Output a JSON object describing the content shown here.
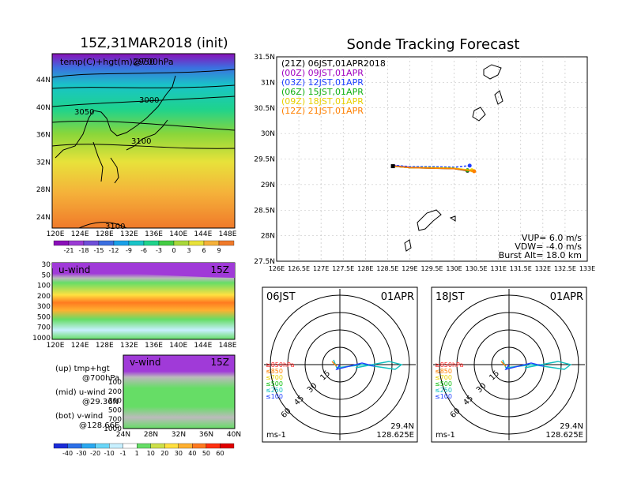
{
  "left": {
    "title": "15Z,31MAR2018 (init)",
    "map_label": "temp(C)+hgt(m)@700hPa",
    "map_label_overlap": "2950",
    "lat_ticks": [
      "44N",
      "40N",
      "36N",
      "32N",
      "28N",
      "24N"
    ],
    "lon_ticks": [
      "120E",
      "124E",
      "128E",
      "132E",
      "136E",
      "140E",
      "144E",
      "148E"
    ],
    "contour_labels": [
      "3000",
      "3050",
      "3100",
      "3100"
    ],
    "temp_scale": [
      "-21",
      "-18",
      "-15",
      "-12",
      "-9",
      "-6",
      "-3",
      "0",
      "3",
      "6",
      "9"
    ],
    "temp_colors": [
      "#8a0fb8",
      "#9b3bd4",
      "#6f4fd8",
      "#3c6fe0",
      "#1aa0e8",
      "#19c4c8",
      "#1fd38c",
      "#44cc44",
      "#a8d83a",
      "#e8e23a",
      "#f5b13a",
      "#f07a2a"
    ],
    "u_wind": {
      "label": "u-wind",
      "time": "15Z",
      "p_ticks": [
        "30",
        "50",
        "100",
        "200",
        "300",
        "500",
        "700",
        "1000"
      ]
    },
    "v_wind": {
      "label": "v-wind",
      "time": "15Z",
      "p_ticks": [
        "100",
        "200",
        "300",
        "500",
        "700",
        "1000"
      ],
      "lat_ticks": [
        "24N",
        "28N",
        "32N",
        "36N",
        "40N"
      ]
    },
    "notes": [
      {
        "a": "(up)  tmp+hgt",
        "b": "@700hPa"
      },
      {
        "a": "(mid)  u-wind",
        "b": "@29.36N"
      },
      {
        "a": "(bot)  v-wind",
        "b": "@128.66E"
      }
    ],
    "wind_scale": [
      "-40",
      "-30",
      "-20",
      "-10",
      "-1",
      "1",
      "10",
      "20",
      "30",
      "40",
      "50",
      "60"
    ],
    "wind_colors": [
      "#1a2bd8",
      "#2c70e8",
      "#2aa8f0",
      "#6ad6f8",
      "#c8f0ff",
      "#ffffff",
      "#66dd66",
      "#cce04a",
      "#ffe040",
      "#ffb030",
      "#ff7a20",
      "#ff3010",
      "#e00000"
    ]
  },
  "right": {
    "title": "Sonde Tracking Forecast",
    "legend": [
      {
        "text": "(21Z)  06JST,01APR2018",
        "color": "#000000"
      },
      {
        "text": "(00Z)  09JST,01APR",
        "color": "#a000c0"
      },
      {
        "text": "(03Z)  12JST,01APR",
        "color": "#2040ff"
      },
      {
        "text": "(06Z)  15JST,01APR",
        "color": "#10b010"
      },
      {
        "text": "(09Z)  18JST,01APR",
        "color": "#e8d000"
      },
      {
        "text": "(12Z)  21JST,01APR",
        "color": "#ff8000"
      }
    ],
    "info": [
      "VUP=  6.0 m/s",
      "VDW= -4.0 m/s",
      "Burst Alt=  18.0 km"
    ],
    "lat_ticks": [
      "31.5N",
      "31N",
      "30.5N",
      "30N",
      "29.5N",
      "29N",
      "28.5N",
      "28N",
      "27.5N"
    ],
    "lon_ticks": [
      "126E",
      "126.5E",
      "127E",
      "127.5E",
      "128E",
      "128.5E",
      "129E",
      "129.5E",
      "130E",
      "130.5E",
      "131E",
      "131.5E",
      "132E",
      "132.5E",
      "133E"
    ]
  },
  "polar1": {
    "time": "06JST",
    "date": "01APR",
    "lat": "29.4N",
    "lon": "128.625E",
    "unit": "ms-1",
    "ring_labels": [
      "15",
      "30",
      "45",
      "60"
    ]
  },
  "polar2": {
    "time": "18JST",
    "date": "01APR",
    "lat": "29.4N",
    "lon": "128.625E",
    "unit": "ms-1",
    "ring_labels": [
      "15",
      "30",
      "45",
      "60"
    ]
  },
  "hodo_legend": [
    {
      "text": "≥850hPa",
      "color": "#ff2020"
    },
    {
      "text": "≤850",
      "color": "#ff8000"
    },
    {
      "text": "≤700",
      "color": "#e8d000"
    },
    {
      "text": "≤500",
      "color": "#10c010"
    },
    {
      "text": "≤250",
      "color": "#10c0c0"
    },
    {
      "text": "≤100",
      "color": "#2040ff"
    }
  ],
  "chart_data": [
    {
      "type": "line",
      "title": "Sonde Tracking Forecast",
      "xlim": [
        126,
        133
      ],
      "ylim": [
        27.5,
        31.5
      ],
      "series": [
        {
          "name": "(21Z) 06JST,01APR2018",
          "color": "#000000",
          "x": [
            128.62,
            129.0,
            129.5,
            130.0,
            130.3
          ],
          "y": [
            29.36,
            29.33,
            29.32,
            29.31,
            29.27
          ]
        },
        {
          "name": "(00Z) 09JST,01APR",
          "color": "#a000c0",
          "x": [
            128.62,
            129.0,
            129.5,
            130.0,
            130.3
          ],
          "y": [
            29.37,
            29.34,
            29.33,
            29.32,
            29.28
          ]
        },
        {
          "name": "(03Z) 12JST,01APR",
          "color": "#2040ff",
          "x": [
            128.62,
            129.0,
            129.5,
            130.0,
            130.35
          ],
          "y": [
            29.38,
            29.35,
            29.35,
            29.34,
            29.37
          ]
        },
        {
          "name": "(06Z) 15JST,01APR",
          "color": "#10b010",
          "x": [
            128.62,
            129.0,
            129.5,
            130.0,
            130.3
          ],
          "y": [
            29.36,
            29.33,
            29.33,
            29.32,
            29.28
          ]
        },
        {
          "name": "(09Z) 18JST,01APR",
          "color": "#e8d000",
          "x": [
            128.62,
            129.0,
            129.5,
            130.0,
            130.4
          ],
          "y": [
            29.36,
            29.33,
            29.33,
            29.32,
            29.28
          ]
        },
        {
          "name": "(12Z) 21JST,01APR",
          "color": "#ff8000",
          "x": [
            128.62,
            129.0,
            129.5,
            130.0,
            130.45
          ],
          "y": [
            29.36,
            29.33,
            29.32,
            29.31,
            29.26
          ]
        }
      ]
    }
  ]
}
